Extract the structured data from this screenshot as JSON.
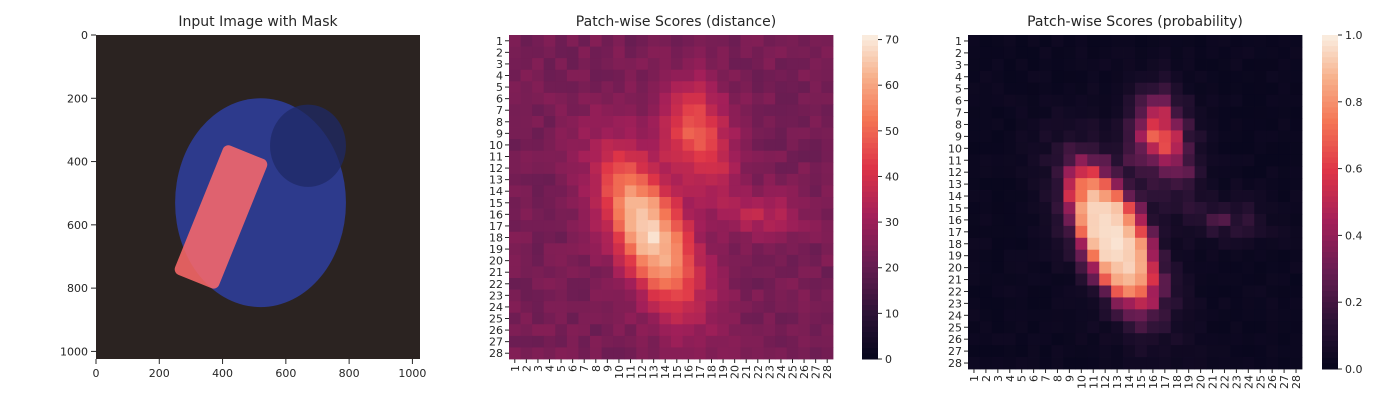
{
  "chart_data": [
    {
      "type": "image",
      "title": "Input Image with Mask",
      "xlim": [
        0,
        1024
      ],
      "ylim": [
        1024,
        0
      ],
      "xticks": [
        0,
        200,
        400,
        600,
        800,
        1000
      ],
      "yticks": [
        0,
        200,
        400,
        600,
        800,
        1000
      ],
      "x_tick_labels": [
        "0",
        "200",
        "400",
        "600",
        "800",
        "1000"
      ],
      "y_tick_labels": [
        "0",
        "200",
        "400",
        "600",
        "800",
        "1000"
      ],
      "background_color": "#2b2321",
      "object_color": "#2d3a8c",
      "mask_color": "#ff6a6a",
      "object": {
        "cx": 520,
        "cy": 530,
        "rx": 270,
        "ry": 330
      },
      "highlighted_region": {
        "cx": 395,
        "cy": 575,
        "half_width": 75,
        "half_length": 220,
        "angle_deg": 22
      }
    },
    {
      "type": "heatmap",
      "title": "Patch-wise Scores (distance)",
      "xlabel": "",
      "ylabel": "",
      "x_labels": [
        "1",
        "2",
        "3",
        "4",
        "5",
        "6",
        "7",
        "8",
        "9",
        "10",
        "11",
        "12",
        "13",
        "14",
        "15",
        "16",
        "17",
        "18",
        "19",
        "20",
        "21",
        "22",
        "23",
        "24",
        "25",
        "26",
        "27",
        "28"
      ],
      "y_labels": [
        "1",
        "2",
        "3",
        "4",
        "5",
        "6",
        "7",
        "8",
        "9",
        "10",
        "11",
        "12",
        "13",
        "14",
        "15",
        "16",
        "17",
        "18",
        "19",
        "20",
        "21",
        "22",
        "23",
        "24",
        "25",
        "26",
        "27",
        "28"
      ],
      "colorbar": {
        "min": 0,
        "max": 71,
        "ticks": [
          0,
          10,
          20,
          30,
          40,
          50,
          60,
          70
        ]
      },
      "colormap": "rocket",
      "model": {
        "background": 24,
        "blobs": [
          {
            "cx": 12.6,
            "cy": 17.5,
            "sx": 2.1,
            "sy": 5.0,
            "angle_deg": -25,
            "peak": 45
          },
          {
            "cx": 16.3,
            "cy": 8.4,
            "sx": 2.0,
            "sy": 2.6,
            "angle_deg": 0,
            "peak": 24
          },
          {
            "cx": 22.0,
            "cy": 16.0,
            "sx": 2.6,
            "sy": 1.4,
            "angle_deg": 0,
            "peak": 12
          },
          {
            "cx": 18.5,
            "cy": 12.0,
            "sx": 1.6,
            "sy": 2.0,
            "angle_deg": 0,
            "peak": 10
          }
        ]
      }
    },
    {
      "type": "heatmap",
      "title": "Patch-wise Scores (probability)",
      "xlabel": "",
      "ylabel": "",
      "x_labels": [
        "1",
        "2",
        "3",
        "4",
        "5",
        "6",
        "7",
        "8",
        "9",
        "10",
        "11",
        "12",
        "13",
        "14",
        "15",
        "16",
        "17",
        "18",
        "19",
        "20",
        "21",
        "22",
        "23",
        "24",
        "25",
        "26",
        "27",
        "28"
      ],
      "y_labels": [
        "1",
        "2",
        "3",
        "4",
        "5",
        "6",
        "7",
        "8",
        "9",
        "10",
        "11",
        "12",
        "13",
        "14",
        "15",
        "16",
        "17",
        "18",
        "19",
        "20",
        "21",
        "22",
        "23",
        "24",
        "25",
        "26",
        "27",
        "28"
      ],
      "colorbar": {
        "min": 0.0,
        "max": 1.0,
        "ticks": [
          0.0,
          0.2,
          0.4,
          0.6,
          0.8,
          1.0
        ],
        "tick_labels": [
          "0.0",
          "0.2",
          "0.4",
          "0.6",
          "0.8",
          "1.0"
        ]
      },
      "colormap": "rocket",
      "model": {
        "derived_from": "distance",
        "threshold": 45,
        "scale": 6
      }
    }
  ]
}
